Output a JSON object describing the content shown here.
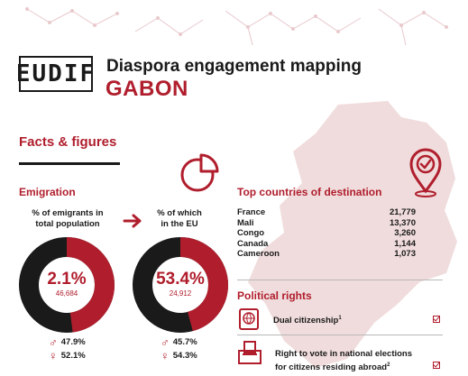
{
  "header": {
    "logo_text": "EUDIF",
    "title": "Diaspora engagement mapping",
    "country": "GABON"
  },
  "facts": {
    "heading": "Facts & figures"
  },
  "emigration": {
    "heading": "Emigration",
    "left": {
      "label_line1": "% of emigrants in",
      "label_line2": "total population",
      "value": "2.1%",
      "count": "46,684",
      "male": "47.9%",
      "female": "52.1%",
      "fraction": 0.479
    },
    "right": {
      "label_line1": "% of which",
      "label_line2": "in the EU",
      "value": "53.4%",
      "count": "24,912",
      "male": "45.7%",
      "female": "54.3%",
      "fraction": 0.457
    }
  },
  "destinations": {
    "heading": "Top countries of destination",
    "rows": [
      {
        "country": "France",
        "value": "21,779"
      },
      {
        "country": "Mali",
        "value": "13,370"
      },
      {
        "country": "Congo",
        "value": "3,260"
      },
      {
        "country": "Canada",
        "value": "1,144"
      },
      {
        "country": "Cameroon",
        "value": "1,073"
      }
    ]
  },
  "political": {
    "heading": "Political rights",
    "items": [
      {
        "text": "Dual citizenship",
        "sup": "1"
      },
      {
        "text_line1": "Right to vote in national elections",
        "text_line2": "for citizens residing abroad",
        "sup": "2"
      }
    ]
  },
  "colors": {
    "accent": "#b01e2d",
    "dark": "#1a1a1a",
    "map": "#f0dcdc"
  },
  "icons": [
    "pie-chart-icon",
    "arrow-right-icon",
    "location-check-icon",
    "passport-icon",
    "ballot-box-icon",
    "checkbox-icon",
    "male-icon",
    "female-icon"
  ]
}
